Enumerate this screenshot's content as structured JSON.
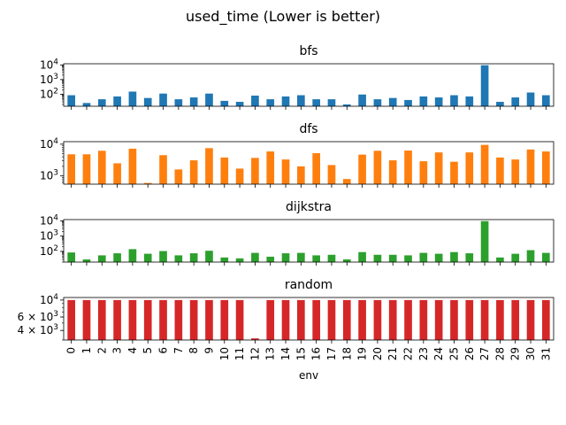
{
  "figure": {
    "suptitle": "used_time (Lower is better)",
    "xlabel": "env"
  },
  "chart_data": [
    {
      "type": "bar",
      "title": "bfs",
      "yscale": "log",
      "ylim": [
        15,
        12000
      ],
      "yticks": [
        {
          "value": 100,
          "label": "10^2"
        },
        {
          "value": 1000,
          "label": "10^3"
        },
        {
          "value": 10000,
          "label": "10^4"
        }
      ],
      "color": "#1f77b4",
      "categories": [
        "0",
        "1",
        "2",
        "3",
        "4",
        "5",
        "6",
        "7",
        "8",
        "9",
        "10",
        "11",
        "12",
        "13",
        "14",
        "15",
        "16",
        "17",
        "18",
        "19",
        "20",
        "21",
        "22",
        "23",
        "24",
        "25",
        "26",
        "27",
        "28",
        "29",
        "30",
        "31"
      ],
      "values": [
        85,
        25,
        45,
        70,
        150,
        55,
        110,
        45,
        60,
        110,
        35,
        30,
        80,
        45,
        70,
        85,
        45,
        45,
        20,
        95,
        45,
        55,
        40,
        70,
        60,
        85,
        70,
        9500,
        30,
        60,
        130,
        85
      ]
    },
    {
      "type": "bar",
      "title": "dfs",
      "yscale": "log",
      "ylim": [
        550,
        12000
      ],
      "yticks": [
        {
          "value": 1000,
          "label": "10^3"
        },
        {
          "value": 10000,
          "label": "10^4"
        }
      ],
      "color": "#ff7f0e",
      "categories": [
        "0",
        "1",
        "2",
        "3",
        "4",
        "5",
        "6",
        "7",
        "8",
        "9",
        "10",
        "11",
        "12",
        "13",
        "14",
        "15",
        "16",
        "17",
        "18",
        "19",
        "20",
        "21",
        "22",
        "23",
        "24",
        "25",
        "26",
        "27",
        "28",
        "29",
        "30",
        "31"
      ],
      "values": [
        4800,
        4800,
        6200,
        2500,
        7200,
        600,
        4500,
        1600,
        3100,
        7500,
        3800,
        1700,
        3700,
        5900,
        3300,
        2000,
        5200,
        2200,
        800,
        4700,
        6200,
        3100,
        6300,
        2900,
        5500,
        2800,
        5500,
        9500,
        3800,
        3300,
        6800,
        5900
      ]
    },
    {
      "type": "bar",
      "title": "dijkstra",
      "yscale": "log",
      "ylim": [
        20,
        12000
      ],
      "yticks": [
        {
          "value": 100,
          "label": "10^2"
        },
        {
          "value": 1000,
          "label": "10^3"
        },
        {
          "value": 10000,
          "label": "10^4"
        }
      ],
      "color": "#2ca02c",
      "categories": [
        "0",
        "1",
        "2",
        "3",
        "4",
        "5",
        "6",
        "7",
        "8",
        "9",
        "10",
        "11",
        "12",
        "13",
        "14",
        "15",
        "16",
        "17",
        "18",
        "19",
        "20",
        "21",
        "22",
        "23",
        "24",
        "25",
        "26",
        "27",
        "28",
        "29",
        "30",
        "31"
      ],
      "values": [
        85,
        30,
        55,
        75,
        140,
        70,
        105,
        55,
        75,
        110,
        40,
        35,
        80,
        45,
        75,
        80,
        55,
        60,
        30,
        90,
        60,
        60,
        55,
        80,
        70,
        90,
        75,
        9500,
        40,
        70,
        120,
        80
      ]
    },
    {
      "type": "bar",
      "title": "random",
      "yscale": "log",
      "ylim": [
        3000,
        10800
      ],
      "yticks": [
        {
          "value": 4000,
          "label": "4 × 10^3"
        },
        {
          "value": 6000,
          "label": "6 × 10^3"
        },
        {
          "value": 10000,
          "label": "10^4"
        }
      ],
      "color": "#d62728",
      "categories": [
        "0",
        "1",
        "2",
        "3",
        "4",
        "5",
        "6",
        "7",
        "8",
        "9",
        "10",
        "11",
        "12",
        "13",
        "14",
        "15",
        "16",
        "17",
        "18",
        "19",
        "20",
        "21",
        "22",
        "23",
        "24",
        "25",
        "26",
        "27",
        "28",
        "29",
        "30",
        "31"
      ],
      "values": [
        10000,
        10000,
        10000,
        10000,
        10000,
        10000,
        10000,
        10000,
        10000,
        10000,
        10000,
        10000,
        3150,
        10000,
        10000,
        10000,
        10000,
        10000,
        10000,
        10000,
        10000,
        10000,
        10000,
        10000,
        10000,
        10000,
        10000,
        10000,
        10000,
        10000,
        10000,
        10000
      ]
    }
  ]
}
